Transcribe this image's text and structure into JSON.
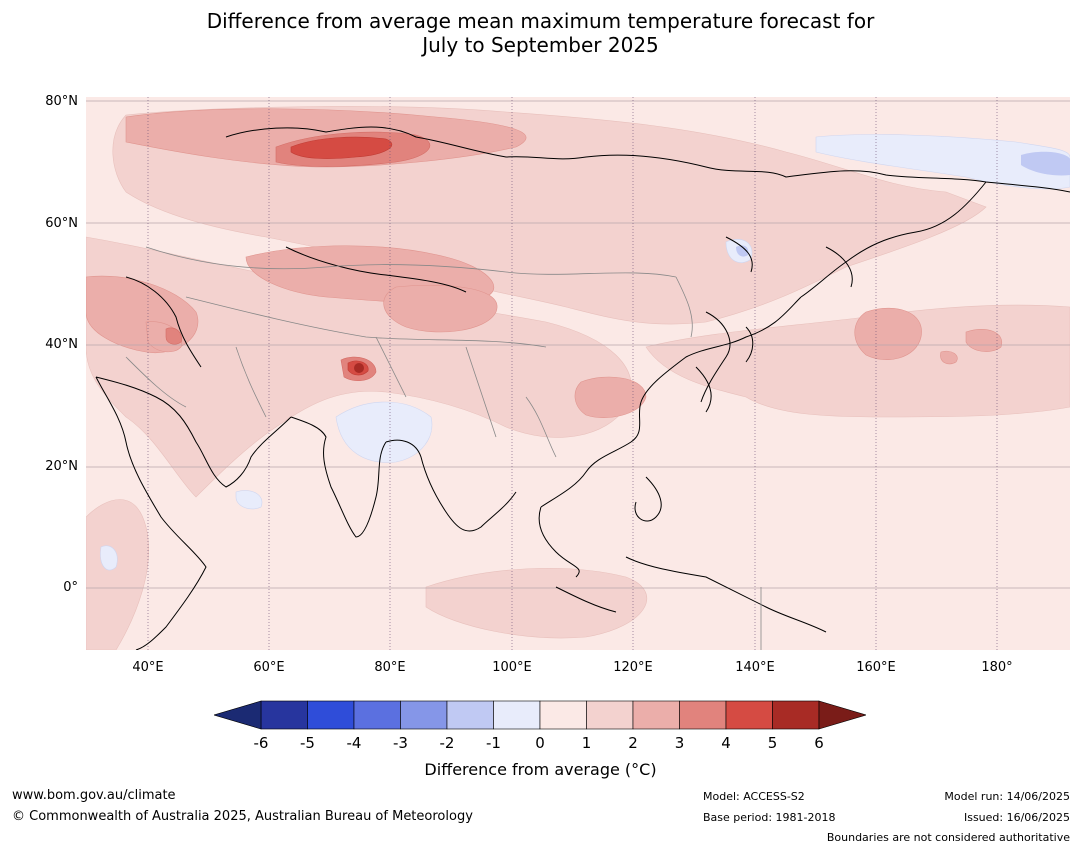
{
  "title": {
    "line1": "Difference from average mean maximum temperature forecast for",
    "line2": "July to September 2025"
  },
  "map": {
    "region": "Asia",
    "lat_labels": [
      "80°N",
      "60°N",
      "40°N",
      "20°N",
      "0°"
    ],
    "lon_labels": [
      "40°E",
      "60°E",
      "80°E",
      "100°E",
      "120°E",
      "140°E",
      "160°E",
      "180°"
    ],
    "colors": {
      "background": "#fbe9e6",
      "warm_0_1": "#fbe9e6",
      "warm_1_2": "#f3d2cf",
      "warm_2_3": "#ebaeaa",
      "warm_3_4": "#e1837d",
      "warm_4_5": "#d54b43",
      "warm_5_6": "#a82b25",
      "cool_0_1": "#e8ecfb",
      "cool_1_2": "#c0c9f3"
    }
  },
  "colorbar": {
    "ticks": [
      "-6",
      "-5",
      "-4",
      "-3",
      "-2",
      "-1",
      "0",
      "1",
      "2",
      "3",
      "4",
      "5",
      "6"
    ],
    "colors": [
      "#27359e",
      "#2f4dd9",
      "#5b70e0",
      "#8596e8",
      "#c0c9f3",
      "#e8ecfb",
      "#fbe9e6",
      "#f3d2cf",
      "#ebaeaa",
      "#e1837d",
      "#d54b43",
      "#a82b25"
    ],
    "extend_low": "#1b2a73",
    "extend_high": "#7a1c18",
    "label": "Difference from average (°C)"
  },
  "footer": {
    "website": "www.bom.gov.au/climate",
    "copyright": "© Commonwealth of Australia 2025, Australian Bureau of Meteorology",
    "model": "Model: ACCESS-S2",
    "base_period": "Base period: 1981-2018",
    "model_run": "Model run: 14/06/2025",
    "issued": "Issued: 16/06/2025",
    "disclaimer": "Boundaries are not considered authoritative"
  }
}
